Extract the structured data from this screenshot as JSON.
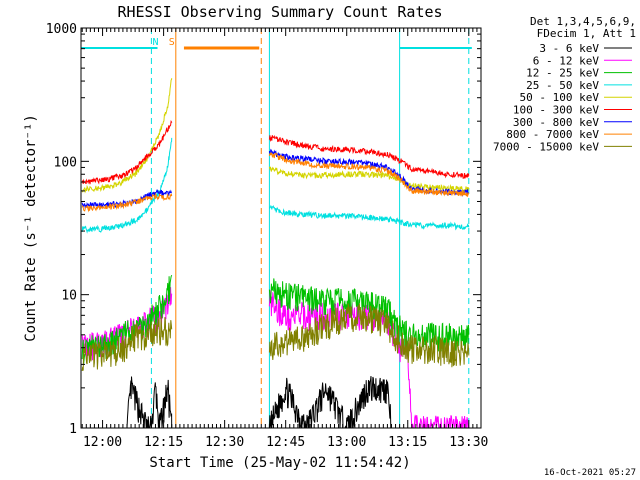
{
  "chart_data": {
    "type": "line",
    "title": "RHESSI Observing Summary Count Rates",
    "xlabel": "Start Time (25-May-02 11:54:42)",
    "ylabel": "Count Rate (s⁻¹ detector⁻¹)",
    "y_scale": "log",
    "ylim": [
      1,
      1000
    ],
    "xlim": [
      "11:54:42",
      "13:33:00"
    ],
    "grid": false,
    "legend_position": "outside-right",
    "x_ticks": [
      "12:00",
      "12:15",
      "12:30",
      "12:45",
      "13:00",
      "13:15",
      "13:30"
    ],
    "y_ticks": [
      "1",
      "10",
      "100",
      "1000"
    ],
    "legend_header": [
      "Det 1,3,4,5,6,9,",
      "FDecim 1, Att 1"
    ],
    "footer_timestamp": "16-Oct-2021 05:27",
    "annotations": [
      {
        "text": "N",
        "time": "12:13",
        "color": "#00e0e0"
      },
      {
        "text": "S",
        "time": "12:17",
        "color": "#ff8000"
      }
    ],
    "intervals": [
      {
        "kind": "N",
        "color": "#00e0e0",
        "start": "11:54:42",
        "end": "12:13:30"
      },
      {
        "kind": "S",
        "color": "#ff8000",
        "start": "12:20:00",
        "end": "12:38:30"
      },
      {
        "kind": "N",
        "color": "#00e0e0",
        "start": "13:13:00",
        "end": "13:30:45"
      }
    ],
    "vlines": [
      {
        "time": "12:12",
        "color": "#00e0e0",
        "style": "dashed"
      },
      {
        "time": "12:18",
        "color": "#ff8000",
        "style": "solid"
      },
      {
        "time": "12:39",
        "color": "#ff8000",
        "style": "dashed"
      },
      {
        "time": "12:41",
        "color": "#00e0e0",
        "style": "solid"
      },
      {
        "time": "13:13",
        "color": "#00e0e0",
        "style": "solid"
      },
      {
        "time": "13:30",
        "color": "#00e0e0",
        "style": "dashed"
      }
    ],
    "data_gap": [
      "12:18",
      "12:40"
    ],
    "series": [
      {
        "name": "3 - 6 keV",
        "color": "#000000",
        "points": [
          [
            "12:06",
            1
          ],
          [
            "12:07",
            2
          ],
          [
            "12:11",
            1
          ],
          [
            "12:12",
            1
          ],
          [
            "12:13",
            2
          ],
          [
            "12:14",
            1
          ],
          [
            "12:16",
            2
          ],
          [
            "12:17",
            1
          ],
          [
            "12:41",
            1
          ],
          [
            "12:45",
            2
          ],
          [
            "12:50",
            1
          ],
          [
            "12:55",
            2
          ],
          [
            "13:00",
            1
          ],
          [
            "13:05",
            2
          ],
          [
            "13:10",
            2
          ],
          [
            "13:11",
            1
          ]
        ]
      },
      {
        "name": "6 - 12 keV",
        "color": "#ff00ff",
        "points": [
          [
            "11:55",
            4
          ],
          [
            "12:05",
            5
          ],
          [
            "12:10",
            6
          ],
          [
            "12:14",
            7
          ],
          [
            "12:16",
            9
          ],
          [
            "12:17",
            10
          ],
          [
            "12:41",
            9
          ],
          [
            "12:45",
            7
          ],
          [
            "12:50",
            7
          ],
          [
            "12:55",
            7
          ],
          [
            "13:00",
            7
          ],
          [
            "13:05",
            7
          ],
          [
            "13:10",
            6.5
          ],
          [
            "13:12",
            5
          ],
          [
            "13:13",
            4
          ],
          [
            "13:15",
            4
          ],
          [
            "13:16",
            1
          ],
          [
            "13:30",
            1
          ]
        ]
      },
      {
        "name": "12 - 25 keV",
        "color": "#00c000",
        "points": [
          [
            "11:55",
            4
          ],
          [
            "12:00",
            4
          ],
          [
            "12:05",
            5
          ],
          [
            "12:10",
            6
          ],
          [
            "12:14",
            8
          ],
          [
            "12:16",
            10
          ],
          [
            "12:17",
            14
          ],
          [
            "12:41",
            11
          ],
          [
            "12:45",
            10
          ],
          [
            "12:50",
            9.5
          ],
          [
            "12:55",
            9
          ],
          [
            "13:00",
            9
          ],
          [
            "13:05",
            8.5
          ],
          [
            "13:10",
            8
          ],
          [
            "13:12",
            6
          ],
          [
            "13:15",
            5
          ],
          [
            "13:20",
            5
          ],
          [
            "13:25",
            5
          ],
          [
            "13:30",
            5
          ]
        ]
      },
      {
        "name": "25 - 50 keV",
        "color": "#00e0e0",
        "points": [
          [
            "11:55",
            31
          ],
          [
            "12:00",
            31
          ],
          [
            "12:05",
            33
          ],
          [
            "12:08",
            36
          ],
          [
            "12:11",
            43
          ],
          [
            "12:14",
            60
          ],
          [
            "12:16",
            90
          ],
          [
            "12:17",
            150
          ],
          [
            "12:41",
            45
          ],
          [
            "12:45",
            41
          ],
          [
            "12:50",
            40
          ],
          [
            "12:55",
            39
          ],
          [
            "13:00",
            39
          ],
          [
            "13:05",
            38
          ],
          [
            "13:10",
            37
          ],
          [
            "13:15",
            34
          ],
          [
            "13:20",
            33
          ],
          [
            "13:25",
            33
          ],
          [
            "13:30",
            32
          ]
        ]
      },
      {
        "name": "50 - 100 keV",
        "color": "#d4d400",
        "points": [
          [
            "11:55",
            62
          ],
          [
            "12:00",
            63
          ],
          [
            "12:04",
            68
          ],
          [
            "12:08",
            80
          ],
          [
            "12:11",
            105
          ],
          [
            "12:14",
            160
          ],
          [
            "12:16",
            260
          ],
          [
            "12:17",
            420
          ],
          [
            "12:41",
            88
          ],
          [
            "12:45",
            82
          ],
          [
            "12:50",
            78
          ],
          [
            "12:55",
            79
          ],
          [
            "13:00",
            80
          ],
          [
            "13:05",
            80
          ],
          [
            "13:10",
            78
          ],
          [
            "13:13",
            72
          ],
          [
            "13:16",
            65
          ],
          [
            "13:20",
            64
          ],
          [
            "13:25",
            63
          ],
          [
            "13:30",
            62
          ]
        ]
      },
      {
        "name": "100 - 300 keV",
        "color": "#ff0000",
        "points": [
          [
            "11:55",
            70
          ],
          [
            "12:00",
            72
          ],
          [
            "12:05",
            78
          ],
          [
            "12:08",
            88
          ],
          [
            "12:11",
            110
          ],
          [
            "12:14",
            135
          ],
          [
            "12:16",
            175
          ],
          [
            "12:17",
            195
          ],
          [
            "12:41",
            152
          ],
          [
            "12:45",
            140
          ],
          [
            "12:50",
            130
          ],
          [
            "12:55",
            124
          ],
          [
            "13:00",
            123
          ],
          [
            "13:05",
            120
          ],
          [
            "13:10",
            112
          ],
          [
            "13:13",
            102
          ],
          [
            "13:16",
            88
          ],
          [
            "13:20",
            84
          ],
          [
            "13:25",
            80
          ],
          [
            "13:30",
            78
          ]
        ]
      },
      {
        "name": "300 - 800 keV",
        "color": "#0000ff",
        "points": [
          [
            "11:55",
            47
          ],
          [
            "12:00",
            47
          ],
          [
            "12:05",
            48
          ],
          [
            "12:09",
            51
          ],
          [
            "12:12",
            57
          ],
          [
            "12:14",
            58
          ],
          [
            "12:17",
            58
          ],
          [
            "12:41",
            118
          ],
          [
            "12:45",
            108
          ],
          [
            "12:50",
            104
          ],
          [
            "12:55",
            100
          ],
          [
            "13:00",
            99
          ],
          [
            "13:05",
            96
          ],
          [
            "13:10",
            90
          ],
          [
            "13:13",
            78
          ],
          [
            "13:16",
            62
          ],
          [
            "13:20",
            60
          ],
          [
            "13:25",
            59
          ],
          [
            "13:30",
            58
          ]
        ]
      },
      {
        "name": "800 - 7000 keV",
        "color": "#ff8000",
        "points": [
          [
            "11:55",
            44
          ],
          [
            "12:00",
            45
          ],
          [
            "12:05",
            47
          ],
          [
            "12:09",
            50
          ],
          [
            "12:12",
            54
          ],
          [
            "12:14",
            54
          ],
          [
            "12:17",
            55
          ],
          [
            "12:41",
            115
          ],
          [
            "12:45",
            102
          ],
          [
            "12:50",
            96
          ],
          [
            "12:55",
            92
          ],
          [
            "13:00",
            92
          ],
          [
            "13:05",
            90
          ],
          [
            "13:10",
            85
          ],
          [
            "13:13",
            74
          ],
          [
            "13:16",
            60
          ],
          [
            "13:20",
            59
          ],
          [
            "13:25",
            58
          ],
          [
            "13:30",
            57
          ]
        ]
      },
      {
        "name": "7000 - 15000 keV",
        "color": "#808000",
        "points": [
          [
            "11:55",
            3.5
          ],
          [
            "12:00",
            3.7
          ],
          [
            "12:05",
            4
          ],
          [
            "12:08",
            5
          ],
          [
            "12:11",
            5
          ],
          [
            "12:14",
            5.5
          ],
          [
            "12:17",
            5.5
          ],
          [
            "12:41",
            4
          ],
          [
            "12:45",
            4.5
          ],
          [
            "12:50",
            5
          ],
          [
            "12:55",
            6
          ],
          [
            "13:00",
            7
          ],
          [
            "13:05",
            7
          ],
          [
            "13:10",
            6
          ],
          [
            "13:12",
            5
          ],
          [
            "13:15",
            4
          ],
          [
            "13:20",
            4
          ],
          [
            "13:25",
            3.8
          ],
          [
            "13:30",
            3.5
          ]
        ]
      }
    ]
  }
}
